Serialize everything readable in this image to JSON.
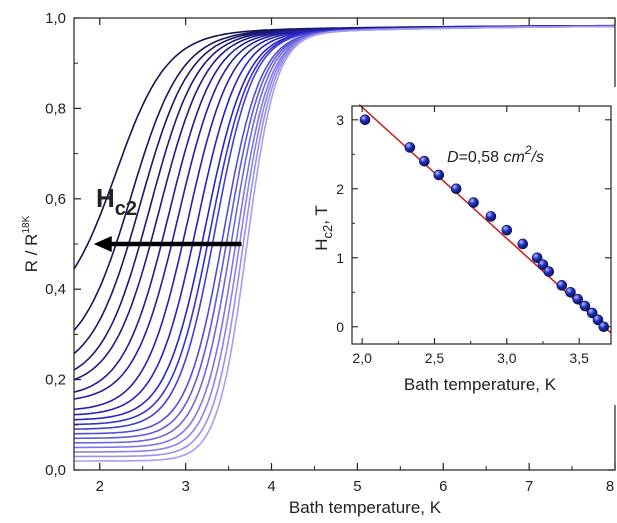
{
  "chart_data": [
    {
      "type": "line",
      "xlabel": "Bath temperature, K",
      "ylabel": "R / R",
      "ylabel_superscript": "18K",
      "xlim": [
        1.7,
        8.0
      ],
      "ylim": [
        0.0,
        1.0
      ],
      "x_ticks": [
        "2",
        "3",
        "4",
        "5",
        "6",
        "7",
        "8"
      ],
      "y_ticks": [
        "0,0",
        "0,2",
        "0,4",
        "0,6",
        "0,8",
        "1,0"
      ],
      "grid": false,
      "colors": {
        "darkest": "#141450",
        "mid": "#2a24c8",
        "lightest": "#a59ef0"
      },
      "series_description": "family of resistive transitions, one per applied field",
      "series": [
        {
          "field_T": 3.0,
          "Tmid_K": 2.18,
          "R0": 0.34
        },
        {
          "field_T": 2.6,
          "Tmid_K": 2.36,
          "R0": 0.24
        },
        {
          "field_T": 2.4,
          "Tmid_K": 2.47,
          "R0": 0.21
        },
        {
          "field_T": 2.2,
          "Tmid_K": 2.58,
          "R0": 0.19
        },
        {
          "field_T": 2.0,
          "Tmid_K": 2.69,
          "R0": 0.18
        },
        {
          "field_T": 1.8,
          "Tmid_K": 2.8,
          "R0": 0.16
        },
        {
          "field_T": 1.6,
          "Tmid_K": 2.91,
          "R0": 0.15
        },
        {
          "field_T": 1.4,
          "Tmid_K": 3.02,
          "R0": 0.13
        },
        {
          "field_T": 1.2,
          "Tmid_K": 3.13,
          "R0": 0.12
        },
        {
          "field_T": 1.0,
          "Tmid_K": 3.23,
          "R0": 0.11
        },
        {
          "field_T": 0.9,
          "Tmid_K": 3.29,
          "R0": 0.1
        },
        {
          "field_T": 0.8,
          "Tmid_K": 3.34,
          "R0": 0.09
        },
        {
          "field_T": 0.6,
          "Tmid_K": 3.44,
          "R0": 0.08
        },
        {
          "field_T": 0.5,
          "Tmid_K": 3.49,
          "R0": 0.07
        },
        {
          "field_T": 0.4,
          "Tmid_K": 3.54,
          "R0": 0.06
        },
        {
          "field_T": 0.3,
          "Tmid_K": 3.59,
          "R0": 0.05
        },
        {
          "field_T": 0.2,
          "Tmid_K": 3.63,
          "R0": 0.04
        },
        {
          "field_T": 0.1,
          "Tmid_K": 3.67,
          "R0": 0.03
        },
        {
          "field_T": 0.0,
          "Tmid_K": 3.71,
          "R0": 0.02
        }
      ],
      "annotation": {
        "label_main": "H",
        "label_sub": "c2",
        "arrow_from": [
          3.65,
          0.5
        ],
        "arrow_to": [
          1.93,
          0.5
        ]
      }
    },
    {
      "type": "scatter",
      "xlabel": "Bath temperature, K",
      "ylabel_main": "H",
      "ylabel_sub": "c2",
      "ylabel_suffix": ", T",
      "xlim": [
        1.93,
        3.72
      ],
      "ylim": [
        -0.25,
        3.2
      ],
      "x_ticks": [
        "2,0",
        "2,5",
        "3,0",
        "3,5"
      ],
      "y_ticks": [
        "0",
        "1",
        "2",
        "3"
      ],
      "annotation": {
        "prefix": "D",
        "value": "=0,58 ",
        "unit": "cm",
        "power": "2",
        "per": "/s"
      },
      "points": [
        {
          "x": 2.02,
          "y": 3.0
        },
        {
          "x": 2.33,
          "y": 2.6
        },
        {
          "x": 2.43,
          "y": 2.4
        },
        {
          "x": 2.53,
          "y": 2.2
        },
        {
          "x": 2.65,
          "y": 2.0
        },
        {
          "x": 2.77,
          "y": 1.8
        },
        {
          "x": 2.89,
          "y": 1.6
        },
        {
          "x": 3.0,
          "y": 1.4
        },
        {
          "x": 3.11,
          "y": 1.2
        },
        {
          "x": 3.21,
          "y": 1.0
        },
        {
          "x": 3.25,
          "y": 0.9
        },
        {
          "x": 3.29,
          "y": 0.8
        },
        {
          "x": 3.38,
          "y": 0.6
        },
        {
          "x": 3.44,
          "y": 0.5
        },
        {
          "x": 3.49,
          "y": 0.4
        },
        {
          "x": 3.54,
          "y": 0.3
        },
        {
          "x": 3.59,
          "y": 0.2
        },
        {
          "x": 3.63,
          "y": 0.1
        },
        {
          "x": 3.67,
          "y": 0.0
        }
      ],
      "fit_line": {
        "x": [
          1.98,
          3.72
        ],
        "y": [
          3.22,
          -0.09
        ]
      },
      "point_color": "#2233cc",
      "fit_color": "#d01818"
    }
  ]
}
